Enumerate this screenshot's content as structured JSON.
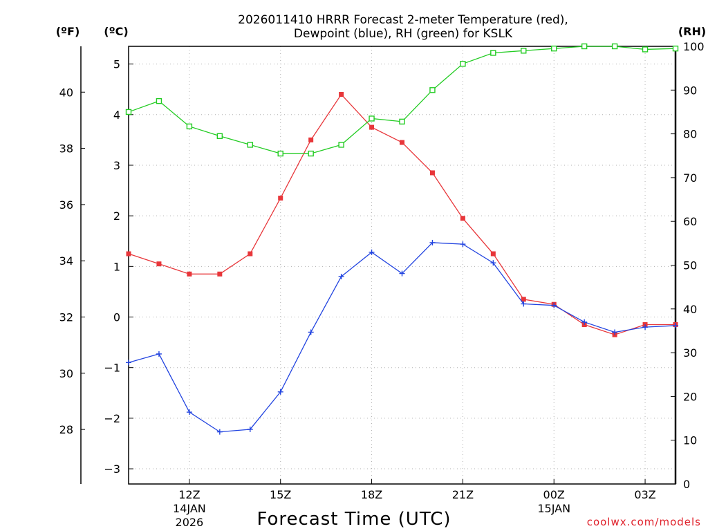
{
  "header": {
    "title_line1": "2026011410 HRRR Forecast 2-meter Temperature (red),",
    "title_line2": "Dewpoint (blue), RH (green) for KSLK"
  },
  "units": {
    "fahrenheit": "(ºF)",
    "celsius": "(ºC)",
    "rh": "(RH)"
  },
  "footer": {
    "xlabel": "Forecast Time (UTC)",
    "credit": "coolwx.com/models"
  },
  "colors": {
    "temperature": "#e8363a",
    "dewpoint": "#2244e0",
    "rh": "#22cc22",
    "grid": "#b0b0b0",
    "credit": "#e0202a"
  },
  "chart_data": {
    "type": "line",
    "title": "2026011410 HRRR Forecast 2-meter Temperature (red), Dewpoint (blue), RH (green) for KSLK",
    "xlabel": "Forecast Time (UTC)",
    "x_hours_utc": [
      10,
      11,
      12,
      13,
      14,
      15,
      16,
      17,
      18,
      19,
      20,
      21,
      22,
      23,
      24,
      25,
      26,
      27,
      28
    ],
    "xlim": [
      10,
      28
    ],
    "x_ticks": [
      {
        "hour": 12,
        "label": "12Z",
        "date": "14JAN",
        "year": "2026"
      },
      {
        "hour": 15,
        "label": "15Z"
      },
      {
        "hour": 18,
        "label": "18Z"
      },
      {
        "hour": 21,
        "label": "21Z"
      },
      {
        "hour": 24,
        "label": "00Z",
        "date": "15JAN"
      },
      {
        "hour": 27,
        "label": "03Z"
      }
    ],
    "y_celsius": {
      "ylim": [
        -3.3,
        5.35
      ],
      "ticks": [
        -3,
        -2,
        -1,
        0,
        1,
        2,
        3,
        4,
        5
      ],
      "tick_labels": [
        "−3",
        "−2",
        "−1",
        "0",
        "1",
        "2",
        "3",
        "4",
        "5"
      ]
    },
    "y_fahrenheit": {
      "ticks": [
        28,
        30,
        32,
        34,
        36,
        38,
        40
      ],
      "tick_labels": [
        "28",
        "30",
        "32",
        "34",
        "36",
        "38",
        "40"
      ]
    },
    "y_rh": {
      "ylim": [
        0,
        100
      ],
      "ticks": [
        0,
        10,
        20,
        30,
        40,
        50,
        60,
        70,
        80,
        90,
        100
      ],
      "tick_labels": [
        "0",
        "10",
        "20",
        "30",
        "40",
        "50",
        "60",
        "70",
        "80",
        "90",
        "100"
      ]
    },
    "series": [
      {
        "name": "Temperature",
        "axis": "celsius",
        "marker": "filled-square",
        "values": [
          1.25,
          1.05,
          0.85,
          0.85,
          1.25,
          2.35,
          3.5,
          4.4,
          3.75,
          3.45,
          2.85,
          1.95,
          1.25,
          0.35,
          0.25,
          -0.15,
          -0.35,
          -0.15,
          -0.15
        ]
      },
      {
        "name": "Dewpoint",
        "axis": "celsius",
        "marker": "plus",
        "values": [
          -0.9,
          -0.73,
          -1.88,
          -2.27,
          -2.22,
          -1.48,
          -0.3,
          0.8,
          1.28,
          0.86,
          1.47,
          1.44,
          1.07,
          0.26,
          0.23,
          -0.1,
          -0.3,
          -0.2,
          -0.17
        ]
      },
      {
        "name": "RH",
        "axis": "rh",
        "marker": "open-square",
        "values": [
          85,
          87.5,
          81.7,
          79.5,
          77.5,
          75.5,
          75.5,
          77.5,
          83.5,
          82.8,
          90,
          96,
          98.5,
          99,
          99.5,
          100,
          100,
          99.3,
          99.5
        ]
      }
    ]
  }
}
